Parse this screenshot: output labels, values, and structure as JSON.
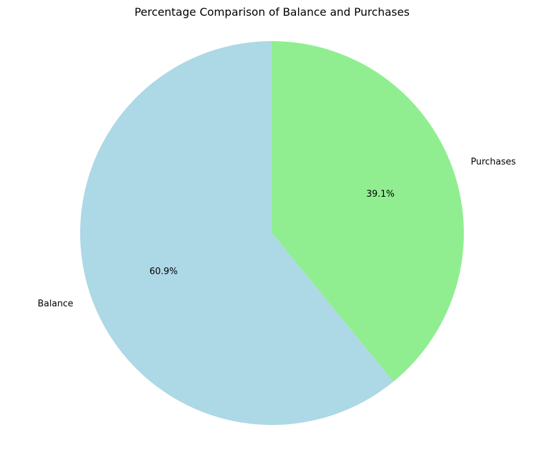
{
  "chart_data": {
    "type": "pie",
    "title": "Percentage Comparison of Balance and Purchases",
    "categories": [
      "Balance",
      "Purchases"
    ],
    "values": [
      60.9,
      39.1
    ],
    "percent_labels": [
      "60.9%",
      "39.1%"
    ],
    "colors": [
      "#add8e6",
      "#90ee90"
    ],
    "start_angle_deg": 90,
    "direction": "counterclockwise",
    "legend": "none"
  }
}
